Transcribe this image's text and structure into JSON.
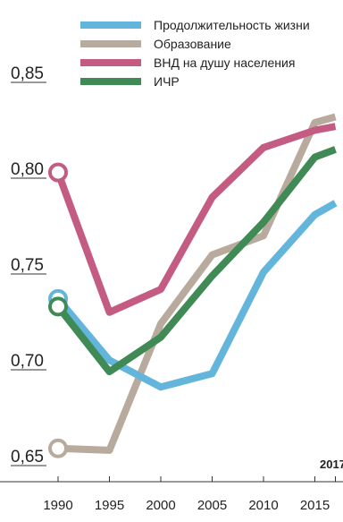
{
  "chart_data": {
    "type": "line",
    "x": [
      1990,
      1995,
      2000,
      2005,
      2010,
      2015,
      2017
    ],
    "x_tick_labels": [
      "1990",
      "1995",
      "2000",
      "2005",
      "2010",
      "2015"
    ],
    "y_tick_labels": [
      "0,85",
      "0,80",
      "0,75",
      "0,70",
      "0,65"
    ],
    "y_ticks": [
      0.85,
      0.8,
      0.75,
      0.7,
      0.65
    ],
    "ylim": [
      0.65,
      0.85
    ],
    "end_label": "2017",
    "grid": false,
    "legend_position": "top-right",
    "series": [
      {
        "name": "Продолжительность жизни",
        "color": "#64b5dc",
        "values": [
          0.737,
          0.705,
          0.691,
          0.698,
          0.751,
          0.781,
          0.787
        ]
      },
      {
        "name": "Образование",
        "color": "#b8ab9e",
        "values": [
          0.659,
          0.658,
          0.724,
          0.76,
          0.77,
          0.829,
          0.832
        ]
      },
      {
        "name": "ВНД на душу населения",
        "color": "#c45b82",
        "values": [
          0.803,
          0.73,
          0.742,
          0.79,
          0.816,
          0.825,
          0.827
        ]
      },
      {
        "name": "ИЧР",
        "color": "#3f8a55",
        "values": [
          0.733,
          0.699,
          0.717,
          0.749,
          0.777,
          0.811,
          0.815
        ]
      }
    ]
  }
}
